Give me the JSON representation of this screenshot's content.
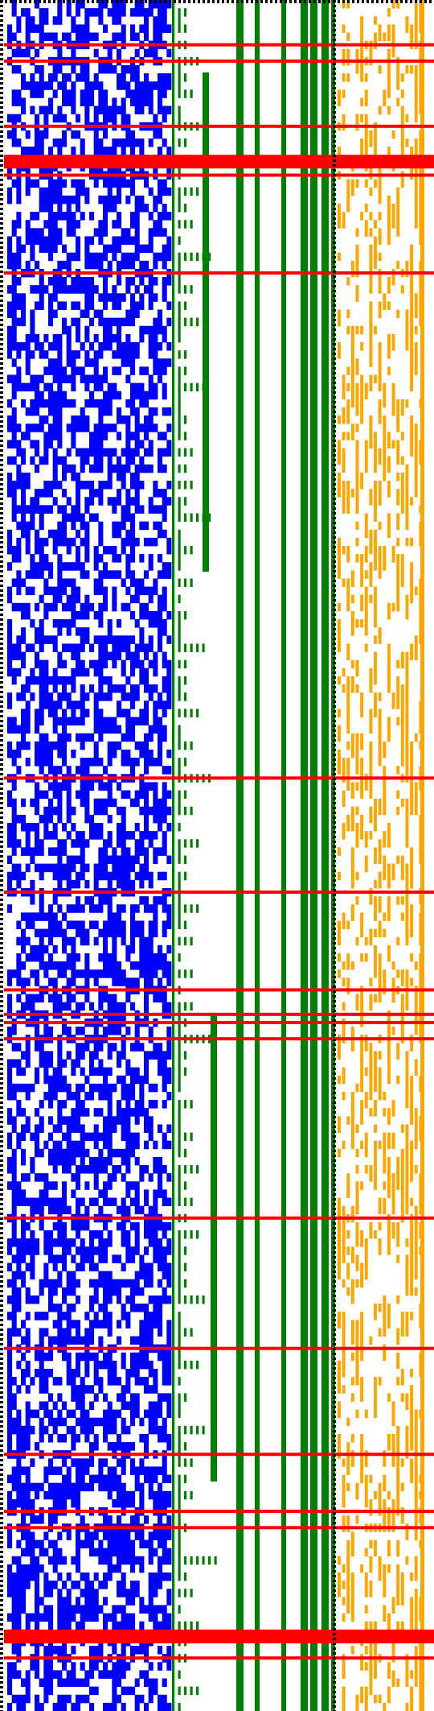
{
  "colors": {
    "background": "#ffffff",
    "blue_region": "#0000ff",
    "green_region": "#008000",
    "orange_region": "#ffa500",
    "red_lines": "#ff0000",
    "border_dots": "#000000"
  },
  "pattern": {
    "rows": 210,
    "blue_cols": 36,
    "orange_cols": 19,
    "blue_density": 0.55,
    "orange_density": 0.45,
    "green_staircase_levels": 11,
    "green_full_bars": 7,
    "red_line_rows": [
      5,
      7,
      15,
      21,
      33,
      95,
      109,
      121,
      124,
      125,
      127,
      149,
      165,
      178,
      185,
      187,
      201,
      203
    ],
    "red_band_rows": [
      19,
      200
    ]
  }
}
